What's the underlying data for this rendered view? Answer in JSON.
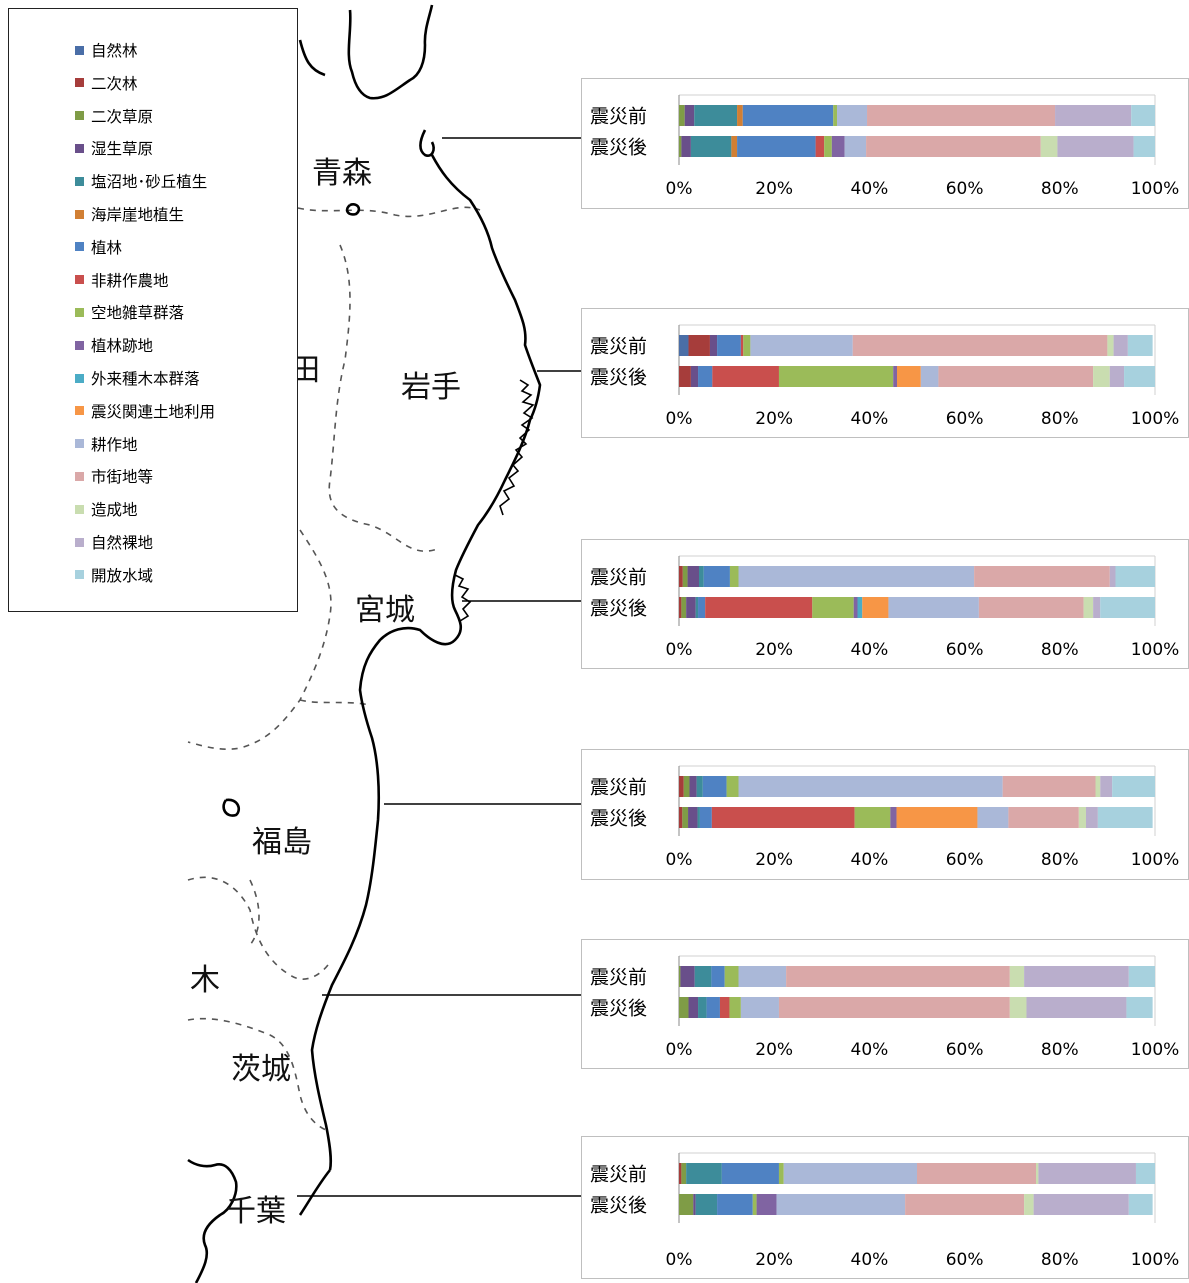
{
  "legend": [
    {
      "label": "自然林",
      "color": "#4a6ea7"
    },
    {
      "label": "二次林",
      "color": "#a63d3b"
    },
    {
      "label": "二次草原",
      "color": "#7f9c46"
    },
    {
      "label": "湿生草原",
      "color": "#694f8a"
    },
    {
      "label": "塩沼地･砂丘植生",
      "color": "#3d8c9a"
    },
    {
      "label": "海岸崖地植生",
      "color": "#d17f34"
    },
    {
      "label": "植林",
      "color": "#4f82c3"
    },
    {
      "label": "非耕作農地",
      "color": "#c94f4d"
    },
    {
      "label": "空地雑草群落",
      "color": "#9bbb59"
    },
    {
      "label": "植林跡地",
      "color": "#8064a2"
    },
    {
      "label": "外来種木本群落",
      "color": "#4bacc6"
    },
    {
      "label": "震災関連土地利用",
      "color": "#f79646"
    },
    {
      "label": "耕作地",
      "color": "#aab8d8"
    },
    {
      "label": "市街地等",
      "color": "#daa8a8"
    },
    {
      "label": "造成地",
      "color": "#c9ddb0"
    },
    {
      "label": "自然裸地",
      "color": "#b9aecc"
    },
    {
      "label": "開放水域",
      "color": "#a7d1de"
    }
  ],
  "prefectures": [
    "青森",
    "岩手",
    "宮城",
    "福島",
    "茨城",
    "千葉"
  ],
  "map_partial_labels": [
    "田",
    "木"
  ],
  "chart_data": [
    {
      "type": "bar",
      "stacked": true,
      "orientation": "horizontal",
      "name": "青森",
      "categories": [
        "震災前",
        "震災後"
      ],
      "x_ticks": [
        "0%",
        "20%",
        "40%",
        "60%",
        "80%",
        "100%"
      ],
      "xlim": [
        0,
        100
      ],
      "series": [
        {
          "name": "自然林",
          "values": [
            0,
            0
          ]
        },
        {
          "name": "二次林",
          "values": [
            0,
            0
          ]
        },
        {
          "name": "二次草原",
          "values": [
            1.2,
            0.5
          ]
        },
        {
          "name": "湿生草原",
          "values": [
            2.0,
            2.0
          ]
        },
        {
          "name": "塩沼地･砂丘植生",
          "values": [
            9.0,
            8.5
          ]
        },
        {
          "name": "海岸崖地植生",
          "values": [
            1.2,
            1.2
          ]
        },
        {
          "name": "植林",
          "values": [
            19.0,
            16.5
          ]
        },
        {
          "name": "非耕作農地",
          "values": [
            0,
            1.8
          ]
        },
        {
          "name": "空地雑草群落",
          "values": [
            0.8,
            1.6
          ]
        },
        {
          "name": "植林跡地",
          "values": [
            0,
            2.7
          ]
        },
        {
          "name": "外来種木本群落",
          "values": [
            0,
            0
          ]
        },
        {
          "name": "震災関連土地利用",
          "values": [
            0,
            0
          ]
        },
        {
          "name": "耕作地",
          "values": [
            6.3,
            4.5
          ]
        },
        {
          "name": "市街地等",
          "values": [
            39.5,
            36.7
          ]
        },
        {
          "name": "造成地",
          "values": [
            0,
            3.5
          ]
        },
        {
          "name": "自然裸地",
          "values": [
            16.0,
            16.0
          ]
        },
        {
          "name": "開放水域",
          "values": [
            5.0,
            4.5
          ]
        }
      ]
    },
    {
      "type": "bar",
      "stacked": true,
      "orientation": "horizontal",
      "name": "岩手",
      "categories": [
        "震災前",
        "震災後"
      ],
      "x_ticks": [
        "0%",
        "20%",
        "40%",
        "60%",
        "80%",
        "100%"
      ],
      "xlim": [
        0,
        100
      ],
      "series": [
        {
          "name": "自然林",
          "values": [
            2.0,
            0
          ]
        },
        {
          "name": "二次林",
          "values": [
            4.5,
            2.5
          ]
        },
        {
          "name": "二次草原",
          "values": [
            0,
            0
          ]
        },
        {
          "name": "湿生草原",
          "values": [
            1.5,
            1.5
          ]
        },
        {
          "name": "塩沼地･砂丘植生",
          "values": [
            0,
            0
          ]
        },
        {
          "name": "海岸崖地植生",
          "values": [
            0,
            0
          ]
        },
        {
          "name": "植林",
          "values": [
            5.0,
            3.0
          ]
        },
        {
          "name": "非耕作農地",
          "values": [
            0.5,
            14.0
          ]
        },
        {
          "name": "空地雑草群落",
          "values": [
            1.5,
            24.0
          ]
        },
        {
          "name": "植林跡地",
          "values": [
            0,
            0.8
          ]
        },
        {
          "name": "外来種木本群落",
          "values": [
            0,
            0
          ]
        },
        {
          "name": "震災関連土地利用",
          "values": [
            0,
            5.0
          ]
        },
        {
          "name": "耕作地",
          "values": [
            21.5,
            3.7
          ]
        },
        {
          "name": "市街地等",
          "values": [
            53.5,
            32.5
          ]
        },
        {
          "name": "造成地",
          "values": [
            1.3,
            3.5
          ]
        },
        {
          "name": "自然裸地",
          "values": [
            3.0,
            3.0
          ]
        },
        {
          "name": "開放水域",
          "values": [
            5.2,
            6.5
          ]
        }
      ]
    },
    {
      "type": "bar",
      "stacked": true,
      "orientation": "horizontal",
      "name": "宮城",
      "categories": [
        "震災前",
        "震災後"
      ],
      "x_ticks": [
        "0%",
        "20%",
        "40%",
        "60%",
        "80%",
        "100%"
      ],
      "xlim": [
        0,
        100
      ],
      "series": [
        {
          "name": "自然林",
          "values": [
            0,
            0
          ]
        },
        {
          "name": "二次林",
          "values": [
            0.8,
            0.5
          ]
        },
        {
          "name": "二次草原",
          "values": [
            1.0,
            1.0
          ]
        },
        {
          "name": "湿生草原",
          "values": [
            2.4,
            2.0
          ]
        },
        {
          "name": "塩沼地･砂丘植生",
          "values": [
            1.0,
            0.5
          ]
        },
        {
          "name": "海岸崖地植生",
          "values": [
            0,
            0
          ]
        },
        {
          "name": "植林",
          "values": [
            5.5,
            1.5
          ]
        },
        {
          "name": "非耕作農地",
          "values": [
            0,
            22.5
          ]
        },
        {
          "name": "空地雑草群落",
          "values": [
            1.8,
            8.7
          ]
        },
        {
          "name": "植林跡地",
          "values": [
            0,
            0.8
          ]
        },
        {
          "name": "外来種木本群落",
          "values": [
            0,
            1.0
          ]
        },
        {
          "name": "震災関連土地利用",
          "values": [
            0,
            5.5
          ]
        },
        {
          "name": "耕作地",
          "values": [
            49.5,
            19.0
          ]
        },
        {
          "name": "市街地等",
          "values": [
            28.5,
            22.0
          ]
        },
        {
          "name": "造成地",
          "values": [
            0,
            2.0
          ]
        },
        {
          "name": "自然裸地",
          "values": [
            1.2,
            1.5
          ]
        },
        {
          "name": "開放水域",
          "values": [
            8.3,
            11.5
          ]
        }
      ]
    },
    {
      "type": "bar",
      "stacked": true,
      "orientation": "horizontal",
      "name": "福島",
      "categories": [
        "震災前",
        "震災後"
      ],
      "x_ticks": [
        "0%",
        "20%",
        "40%",
        "60%",
        "80%",
        "100%"
      ],
      "xlim": [
        0,
        100
      ],
      "series": [
        {
          "name": "自然林",
          "values": [
            0,
            0
          ]
        },
        {
          "name": "二次林",
          "values": [
            1.0,
            0.7
          ]
        },
        {
          "name": "二次草原",
          "values": [
            1.2,
            1.2
          ]
        },
        {
          "name": "湿生草原",
          "values": [
            1.5,
            2.0
          ]
        },
        {
          "name": "塩沼地･砂丘植生",
          "values": [
            1.3,
            0.5
          ]
        },
        {
          "name": "海岸崖地植生",
          "values": [
            0,
            0
          ]
        },
        {
          "name": "植林",
          "values": [
            5.0,
            2.5
          ]
        },
        {
          "name": "非耕作農地",
          "values": [
            0,
            30.0
          ]
        },
        {
          "name": "空地雑草群落",
          "values": [
            2.5,
            7.5
          ]
        },
        {
          "name": "植林跡地",
          "values": [
            0,
            1.3
          ]
        },
        {
          "name": "外来種木本群落",
          "values": [
            0,
            0
          ]
        },
        {
          "name": "震災関連土地利用",
          "values": [
            0,
            17.0
          ]
        },
        {
          "name": "耕作地",
          "values": [
            55.5,
            6.5
          ]
        },
        {
          "name": "市街地等",
          "values": [
            19.5,
            14.8
          ]
        },
        {
          "name": "造成地",
          "values": [
            1.0,
            1.5
          ]
        },
        {
          "name": "自然裸地",
          "values": [
            2.5,
            2.5
          ]
        },
        {
          "name": "開放水域",
          "values": [
            9.0,
            11.5
          ]
        }
      ]
    },
    {
      "type": "bar",
      "stacked": true,
      "orientation": "horizontal",
      "name": "茨城",
      "categories": [
        "震災前",
        "震災後"
      ],
      "x_ticks": [
        "0%",
        "20%",
        "40%",
        "60%",
        "80%",
        "100%"
      ],
      "xlim": [
        0,
        100
      ],
      "series": [
        {
          "name": "自然林",
          "values": [
            0,
            0
          ]
        },
        {
          "name": "二次林",
          "values": [
            0,
            0
          ]
        },
        {
          "name": "二次草原",
          "values": [
            0.3,
            2.0
          ]
        },
        {
          "name": "湿生草原",
          "values": [
            3.0,
            2.0
          ]
        },
        {
          "name": "塩沼地･砂丘植生",
          "values": [
            3.5,
            1.8
          ]
        },
        {
          "name": "海岸崖地植生",
          "values": [
            0,
            0
          ]
        },
        {
          "name": "植林",
          "values": [
            2.8,
            2.8
          ]
        },
        {
          "name": "非耕作農地",
          "values": [
            0,
            2.0
          ]
        },
        {
          "name": "空地雑草群落",
          "values": [
            2.9,
            2.4
          ]
        },
        {
          "name": "植林跡地",
          "values": [
            0,
            0
          ]
        },
        {
          "name": "外来種木本群落",
          "values": [
            0,
            0
          ]
        },
        {
          "name": "震災関連土地利用",
          "values": [
            0,
            0
          ]
        },
        {
          "name": "耕作地",
          "values": [
            10.0,
            8.0
          ]
        },
        {
          "name": "市街地等",
          "values": [
            47.0,
            48.5
          ]
        },
        {
          "name": "造成地",
          "values": [
            3.0,
            3.5
          ]
        },
        {
          "name": "自然裸地",
          "values": [
            22.0,
            21.0
          ]
        },
        {
          "name": "開放水域",
          "values": [
            5.5,
            5.5
          ]
        }
      ]
    },
    {
      "type": "bar",
      "stacked": true,
      "orientation": "horizontal",
      "name": "千葉",
      "categories": [
        "震災前",
        "震災後"
      ],
      "x_ticks": [
        "0%",
        "20%",
        "40%",
        "60%",
        "80%",
        "100%"
      ],
      "xlim": [
        0,
        100
      ],
      "series": [
        {
          "name": "自然林",
          "values": [
            0,
            0
          ]
        },
        {
          "name": "二次林",
          "values": [
            0.5,
            0
          ]
        },
        {
          "name": "二次草原",
          "values": [
            1.0,
            3.0
          ]
        },
        {
          "name": "湿生草原",
          "values": [
            0,
            0.5
          ]
        },
        {
          "name": "塩沼地･砂丘植生",
          "values": [
            7.5,
            4.5
          ]
        },
        {
          "name": "海岸崖地植生",
          "values": [
            0,
            0
          ]
        },
        {
          "name": "植林",
          "values": [
            12.0,
            7.5
          ]
        },
        {
          "name": "非耕作農地",
          "values": [
            0,
            0
          ]
        },
        {
          "name": "空地雑草群落",
          "values": [
            1.0,
            0.8
          ]
        },
        {
          "name": "植林跡地",
          "values": [
            0,
            4.2
          ]
        },
        {
          "name": "外来種木本群落",
          "values": [
            0,
            0
          ]
        },
        {
          "name": "震災関連土地利用",
          "values": [
            0,
            0
          ]
        },
        {
          "name": "耕作地",
          "values": [
            28.0,
            27.0
          ]
        },
        {
          "name": "市街地等",
          "values": [
            25.0,
            25.0
          ]
        },
        {
          "name": "造成地",
          "values": [
            0.5,
            2.0
          ]
        },
        {
          "name": "自然裸地",
          "values": [
            20.5,
            20.0
          ]
        },
        {
          "name": "開放水域",
          "values": [
            4.0,
            5.0
          ]
        }
      ]
    }
  ]
}
